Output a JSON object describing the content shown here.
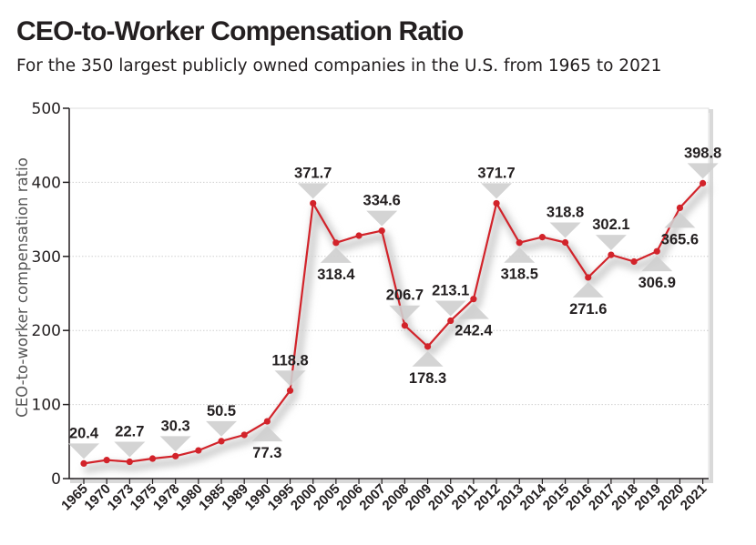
{
  "chart_data": {
    "type": "line",
    "title": "CEO-to-Worker Compensation Ratio",
    "subtitle": "For the 350 largest publicly owned companies in the U.S. from 1965 to 2021",
    "ylabel": "CEO-to-worker compensation ratio",
    "xlabel": "",
    "ylim": [
      0,
      500
    ],
    "yticks": [
      0,
      100,
      200,
      300,
      400,
      500
    ],
    "grid": true,
    "categories": [
      "1965",
      "1970",
      "1973",
      "1975",
      "1978",
      "1980",
      "1985",
      "1989",
      "1990",
      "1995",
      "2000",
      "2005",
      "2006",
      "2007",
      "2008",
      "2009",
      "2010",
      "2011",
      "2012",
      "2013",
      "2014",
      "2015",
      "2016",
      "2017",
      "2018",
      "2019",
      "2020",
      "2021"
    ],
    "series": [
      {
        "values": [
          20.4,
          25.0,
          22.7,
          27.0,
          30.3,
          38.0,
          50.5,
          59.0,
          77.3,
          118.8,
          371.7,
          318.4,
          328.0,
          334.6,
          206.7,
          178.3,
          213.1,
          242.4,
          371.7,
          318.5,
          326.0,
          318.8,
          271.6,
          302.1,
          293.0,
          306.9,
          365.6,
          398.8
        ]
      }
    ],
    "data_labels": [
      {
        "index": 0,
        "text": "20.4",
        "pos": "above"
      },
      {
        "index": 2,
        "text": "22.7",
        "pos": "above"
      },
      {
        "index": 4,
        "text": "30.3",
        "pos": "above"
      },
      {
        "index": 6,
        "text": "50.5",
        "pos": "above"
      },
      {
        "index": 8,
        "text": "77.3",
        "pos": "below"
      },
      {
        "index": 9,
        "text": "118.8",
        "pos": "above"
      },
      {
        "index": 10,
        "text": "371.7",
        "pos": "above"
      },
      {
        "index": 11,
        "text": "318.4",
        "pos": "below"
      },
      {
        "index": 13,
        "text": "334.6",
        "pos": "above"
      },
      {
        "index": 14,
        "text": "206.7",
        "pos": "above"
      },
      {
        "index": 15,
        "text": "178.3",
        "pos": "below"
      },
      {
        "index": 16,
        "text": "213.1",
        "pos": "above"
      },
      {
        "index": 17,
        "text": "242.4",
        "pos": "below"
      },
      {
        "index": 18,
        "text": "371.7",
        "pos": "above"
      },
      {
        "index": 19,
        "text": "318.5",
        "pos": "below"
      },
      {
        "index": 21,
        "text": "318.8",
        "pos": "above"
      },
      {
        "index": 22,
        "text": "271.6",
        "pos": "below"
      },
      {
        "index": 23,
        "text": "302.1",
        "pos": "above"
      },
      {
        "index": 25,
        "text": "306.9",
        "pos": "below"
      },
      {
        "index": 26,
        "text": "365.6",
        "pos": "below"
      },
      {
        "index": 27,
        "text": "398.8",
        "pos": "above"
      }
    ],
    "colors": {
      "line": "#d2232a",
      "grid": "#cfcfcf",
      "axis": "#231f20",
      "label": "#231f20",
      "marker_bg": "#cfcfcf",
      "shadow": "#d9d9d9"
    }
  }
}
